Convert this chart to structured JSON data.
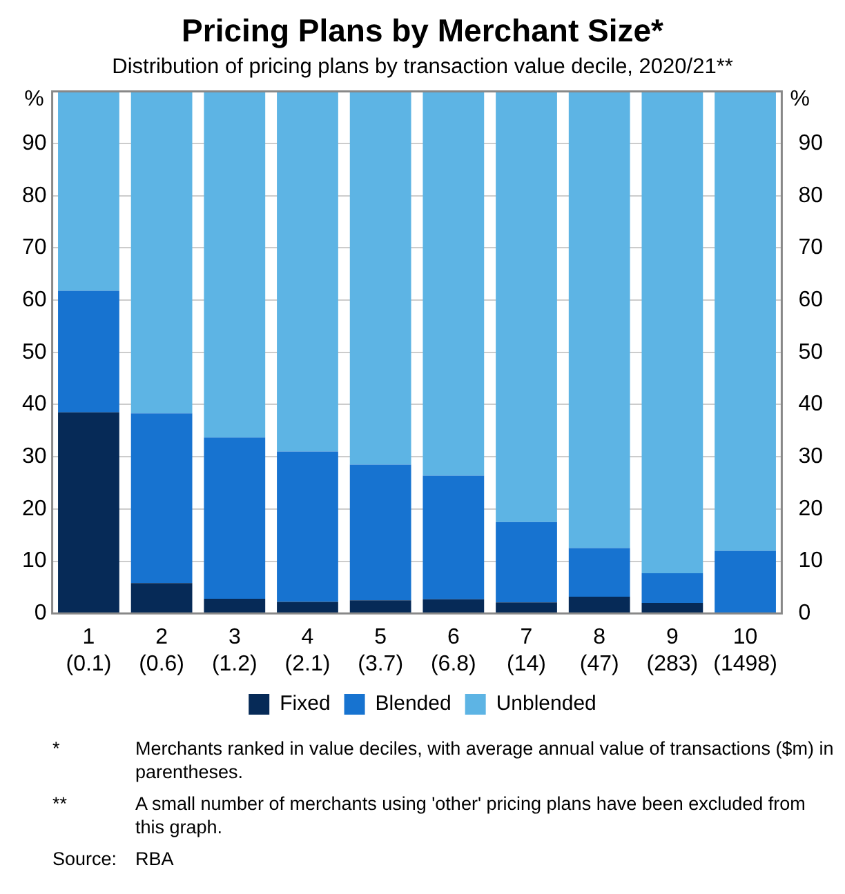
{
  "chart_data": {
    "type": "bar",
    "title": "Pricing Plans by Merchant Size*",
    "subtitle": "Distribution of pricing plans by transaction value decile, 2020/21**",
    "ylabel": "%",
    "y2label": "%",
    "categories": [
      "1\n(0.1)",
      "2\n(0.6)",
      "3\n(1.2)",
      "4\n(2.1)",
      "5\n(3.7)",
      "6\n(6.8)",
      "7\n(14)",
      "8\n(47)",
      "9\n(283)",
      "10\n(1498)"
    ],
    "stacked": true,
    "series": [
      {
        "name": "Fixed",
        "color": "#062a57",
        "values": [
          38.5,
          5.8,
          2.8,
          2.2,
          2.5,
          2.7,
          2.1,
          3.2,
          2.0,
          0
        ]
      },
      {
        "name": "Blended",
        "color": "#1773d0",
        "values": [
          23.3,
          32.5,
          30.9,
          28.8,
          26.0,
          23.7,
          15.4,
          9.3,
          5.7,
          12.0
        ]
      },
      {
        "name": "Unblended",
        "color": "#5db4e4",
        "values": [
          38.2,
          61.7,
          66.3,
          69.0,
          71.5,
          73.6,
          82.5,
          87.5,
          92.3,
          88.0
        ]
      }
    ],
    "ylim": [
      0,
      100
    ],
    "yticks": [
      0,
      10,
      20,
      30,
      40,
      50,
      60,
      70,
      80,
      90
    ],
    "y2lim": [
      0,
      100
    ],
    "y2ticks": [
      0,
      10,
      20,
      30,
      40,
      50,
      60,
      70,
      80,
      90
    ],
    "grid": "y",
    "legend": "bottom",
    "annotations": [
      "* Merchants ranked in value deciles, with average annual value of transactions ($m) in parentheses.",
      "** A small number of merchants using 'other' pricing plans have been excluded from this graph.",
      "Source: RBA"
    ]
  }
}
